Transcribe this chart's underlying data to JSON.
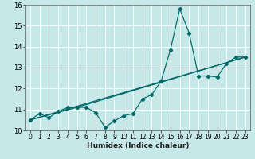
{
  "xlabel": "Humidex (Indice chaleur)",
  "xlim": [
    -0.5,
    23.5
  ],
  "ylim": [
    10.0,
    16.0
  ],
  "yticks": [
    10,
    11,
    12,
    13,
    14,
    15,
    16
  ],
  "xticks": [
    0,
    1,
    2,
    3,
    4,
    5,
    6,
    7,
    8,
    9,
    10,
    11,
    12,
    13,
    14,
    15,
    16,
    17,
    18,
    19,
    20,
    21,
    22,
    23
  ],
  "background_color": "#c6e8e8",
  "grid_color": "#ffffff",
  "line_color": "#006868",
  "curve_x": [
    0,
    1,
    2,
    3,
    4,
    5,
    6,
    7,
    8,
    9,
    10,
    11,
    12,
    13,
    14,
    15,
    16,
    17,
    18,
    19,
    20,
    21,
    22,
    23
  ],
  "curve_y": [
    10.5,
    10.8,
    10.6,
    10.9,
    11.1,
    11.1,
    11.1,
    10.85,
    10.15,
    10.45,
    10.7,
    10.8,
    11.5,
    11.7,
    12.35,
    13.85,
    15.8,
    14.65,
    12.6,
    12.6,
    12.55,
    13.2,
    13.5,
    13.5
  ],
  "line1": {
    "x": [
      0,
      23
    ],
    "y": [
      10.5,
      13.5
    ]
  },
  "line2": {
    "x": [
      0,
      23
    ],
    "y": [
      10.5,
      13.5
    ]
  },
  "line3": {
    "x": [
      5,
      23
    ],
    "y": [
      11.1,
      13.5
    ]
  },
  "line4": {
    "x": [
      0,
      5
    ],
    "y": [
      10.5,
      11.1
    ]
  }
}
